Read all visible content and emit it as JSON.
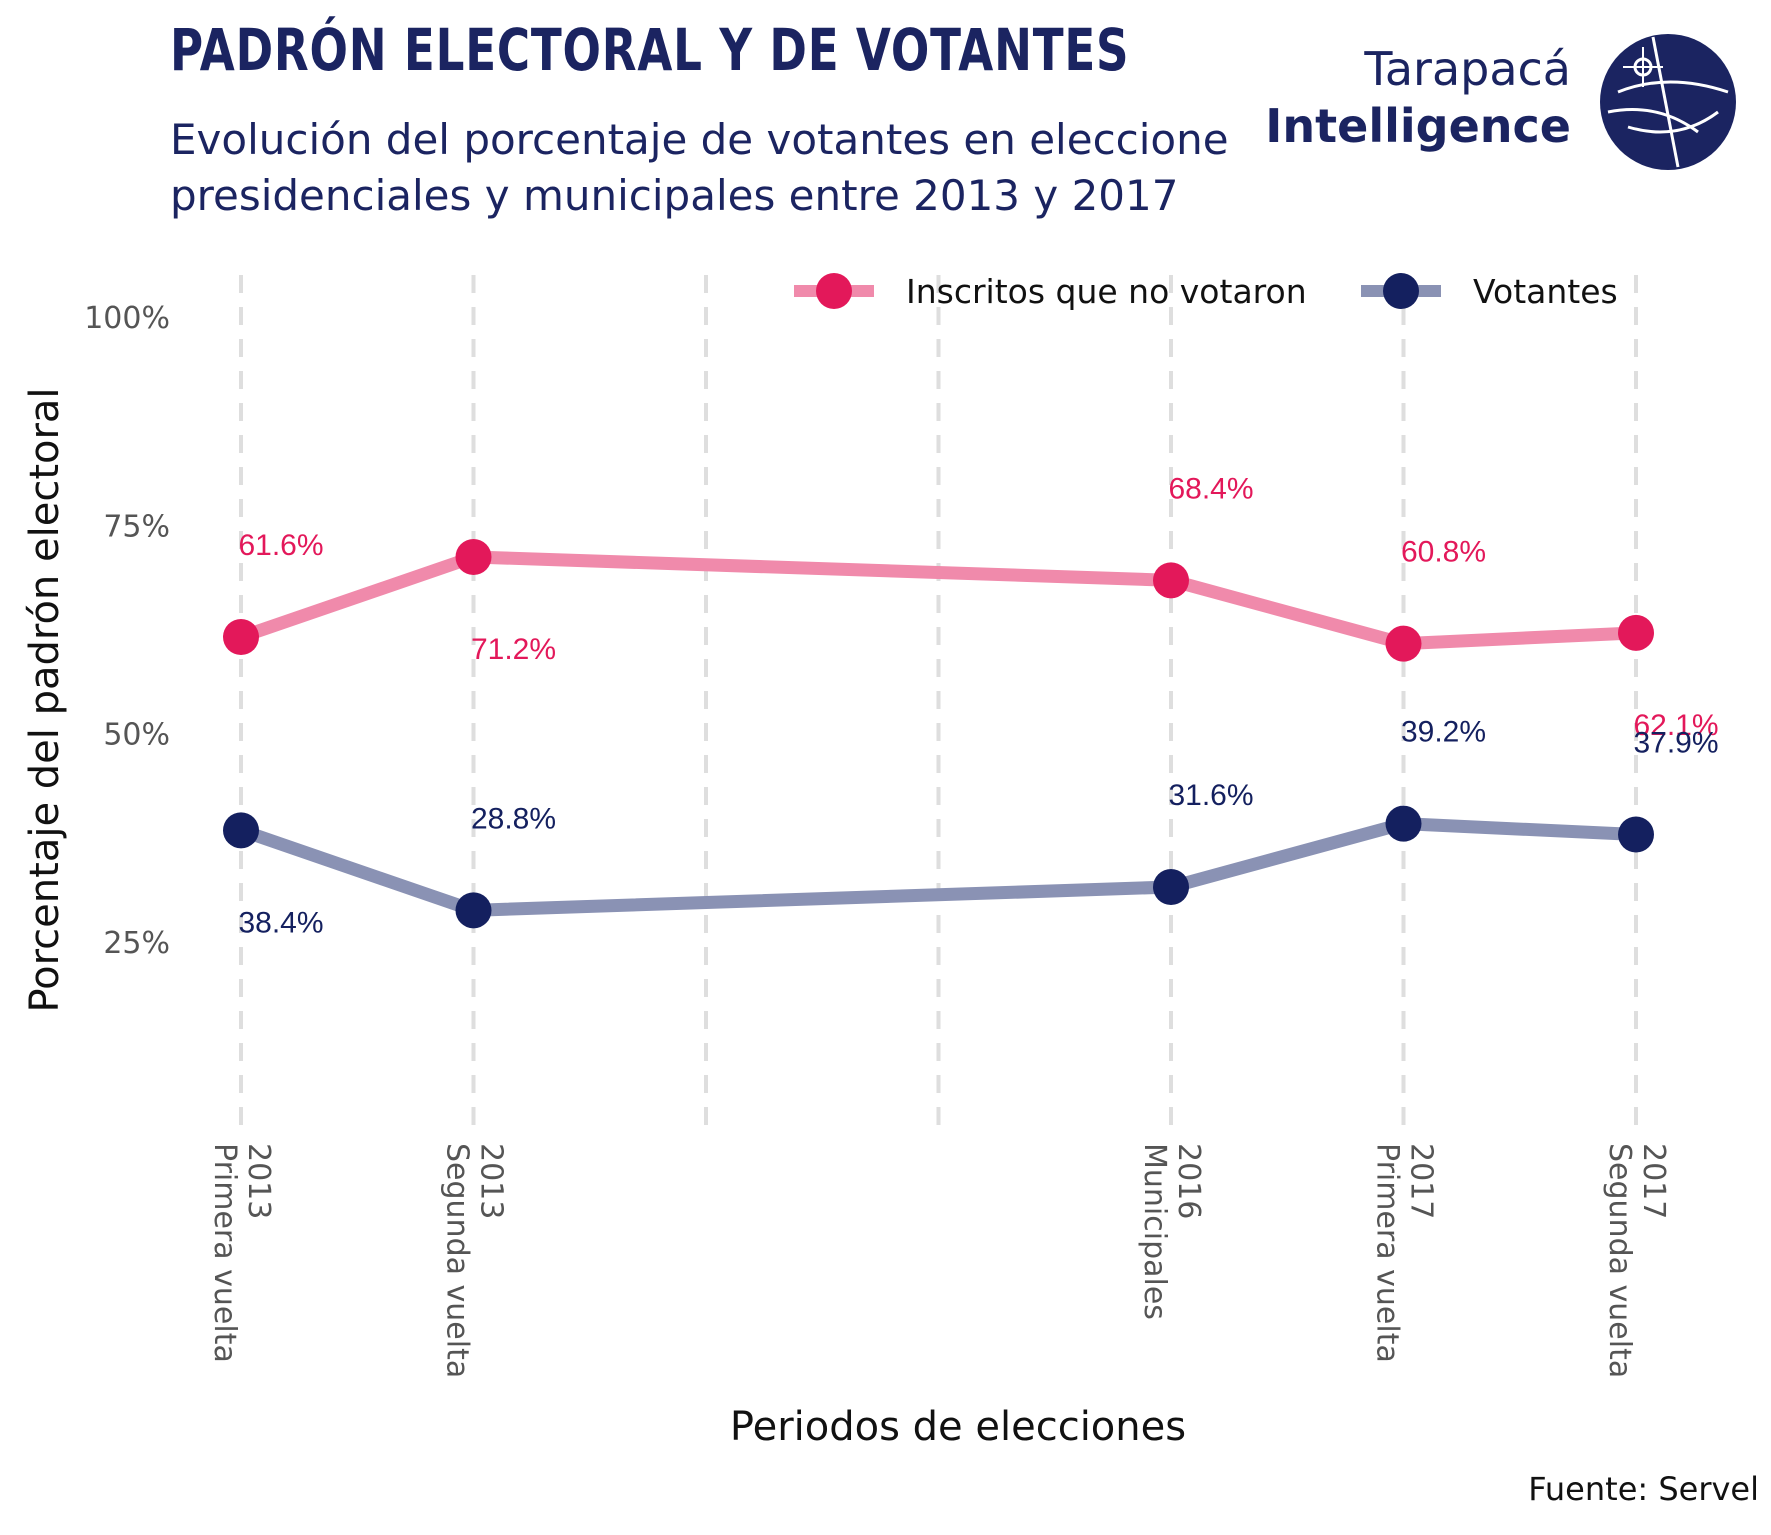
{
  "header": {
    "title": "PADRÓN ELECTORAL Y DE VOTANTES",
    "subtitle_line1": "Evolución del porcentaje de votantes en eleccione",
    "subtitle_line2": "presidenciales y municipales entre 2013 y 2017"
  },
  "logo": {
    "line1": "Tarapacá",
    "line2": "Intelligence"
  },
  "source": "Fuente: Servel",
  "colors": {
    "inscritos_point": "#e3185a",
    "inscritos_line": "#f08aab",
    "votantes_point": "#14205f",
    "votantes_line": "#8a92b4",
    "text_dark": "#1b2461",
    "grid": "#dedede"
  },
  "chart_data": {
    "type": "line",
    "xlabel": "Periodos de elecciones",
    "ylabel": "Porcentaje del padrón electoral",
    "x_categories": [
      {
        "year": "2013",
        "name": "Primera vuelta"
      },
      {
        "year": "2013",
        "name": "Segunda vuelta"
      },
      {
        "year": "2016",
        "name": "Municipales"
      },
      {
        "year": "2017",
        "name": "Primera vuelta"
      },
      {
        "year": "2017",
        "name": "Segunda vuelta"
      }
    ],
    "x_positions": [
      1,
      2,
      5,
      6,
      7
    ],
    "x_range": [
      1,
      7
    ],
    "y_ticks": [
      {
        "value": 25,
        "label": "25%"
      },
      {
        "value": 50,
        "label": "50%"
      },
      {
        "value": 75,
        "label": "75%"
      },
      {
        "value": 100,
        "label": "100%"
      }
    ],
    "ylim": [
      10,
      100
    ],
    "grid": "vertical dashed",
    "legend_position": "top-right",
    "series": [
      {
        "name": "Inscritos que no votaron",
        "values": [
          61.6,
          71.2,
          68.4,
          60.8,
          62.1
        ],
        "labels": [
          "61.6%",
          "71.2%",
          "68.4%",
          "60.8%",
          "62.1%"
        ]
      },
      {
        "name": "Votantes",
        "values": [
          38.4,
          28.8,
          31.6,
          39.2,
          37.9
        ],
        "labels": [
          "38.4%",
          "28.8%",
          "31.6%",
          "39.2%",
          "37.9%"
        ]
      }
    ]
  }
}
